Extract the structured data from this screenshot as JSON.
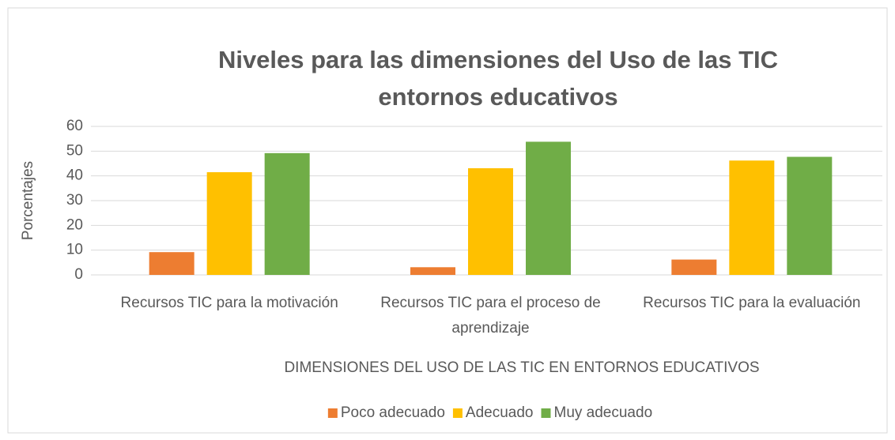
{
  "chart_data": {
    "type": "bar",
    "title": "Niveles para las dimensiones del Uso de las TIC entornos educativos",
    "x_label": "DIMENSIONES DEL USO DE LAS TIC EN ENTORNOS EDUCATIVOS",
    "y_label": "Porcentajes",
    "categories": [
      "Recursos TIC para la motivación",
      "Recursos TIC para el proceso de aprendizaje",
      "Recursos TIC para la evaluación"
    ],
    "series": [
      {
        "name": "Poco adecuado",
        "color": "#ed7d31",
        "values": [
          9.2,
          3.1,
          6.2
        ]
      },
      {
        "name": "Adecuado",
        "color": "#ffc000",
        "values": [
          41.5,
          43.1,
          46.2
        ]
      },
      {
        "name": "Muy adecuado",
        "color": "#70ad47",
        "values": [
          49.2,
          53.8,
          47.7
        ]
      }
    ],
    "ylim": [
      0,
      60
    ],
    "yticks": [
      0,
      10,
      20,
      30,
      40,
      50,
      60
    ],
    "grid": true,
    "legend": "bottom"
  }
}
